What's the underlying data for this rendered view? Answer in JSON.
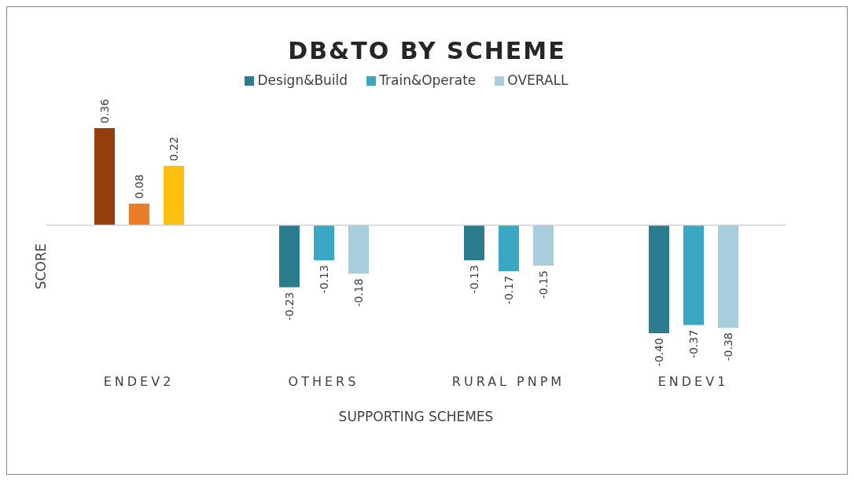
{
  "chart_data": {
    "type": "bar",
    "title": "DB&TO  BY SCHEME",
    "xlabel": "SUPPORTING SCHEMES",
    "ylabel": "SCORE",
    "categories": [
      "ENDEV2",
      "OTHERS",
      "RURAL PNPM",
      "ENDEV1"
    ],
    "series": [
      {
        "name": "Design&Build",
        "color": "#2b7d8e",
        "colors": [
          "#963d0e",
          "#2b7d8e",
          "#2b7d8e",
          "#2b7d8e"
        ],
        "values": [
          0.36,
          -0.23,
          -0.13,
          -0.4
        ],
        "value_labels": [
          "0.36",
          "-0.23",
          "-0.13",
          "-0.40"
        ]
      },
      {
        "name": "Train&Operate",
        "color": "#3aa7c3",
        "colors": [
          "#ea7d28",
          "#3aa7c3",
          "#3aa7c3",
          "#3aa7c3"
        ],
        "values": [
          0.08,
          -0.13,
          -0.17,
          -0.37
        ],
        "value_labels": [
          "0.08",
          "-0.13",
          "-0.17",
          "-0.37"
        ]
      },
      {
        "name": "OVERALL",
        "color": "#a8cedd",
        "colors": [
          "#fbbf10",
          "#a8cedd",
          "#a8cedd",
          "#a8cedd"
        ],
        "values": [
          0.22,
          -0.18,
          -0.15,
          -0.38
        ],
        "value_labels": [
          "0.22",
          "-0.18",
          "-0.15",
          "-0.38"
        ]
      }
    ],
    "legend": "top"
  }
}
